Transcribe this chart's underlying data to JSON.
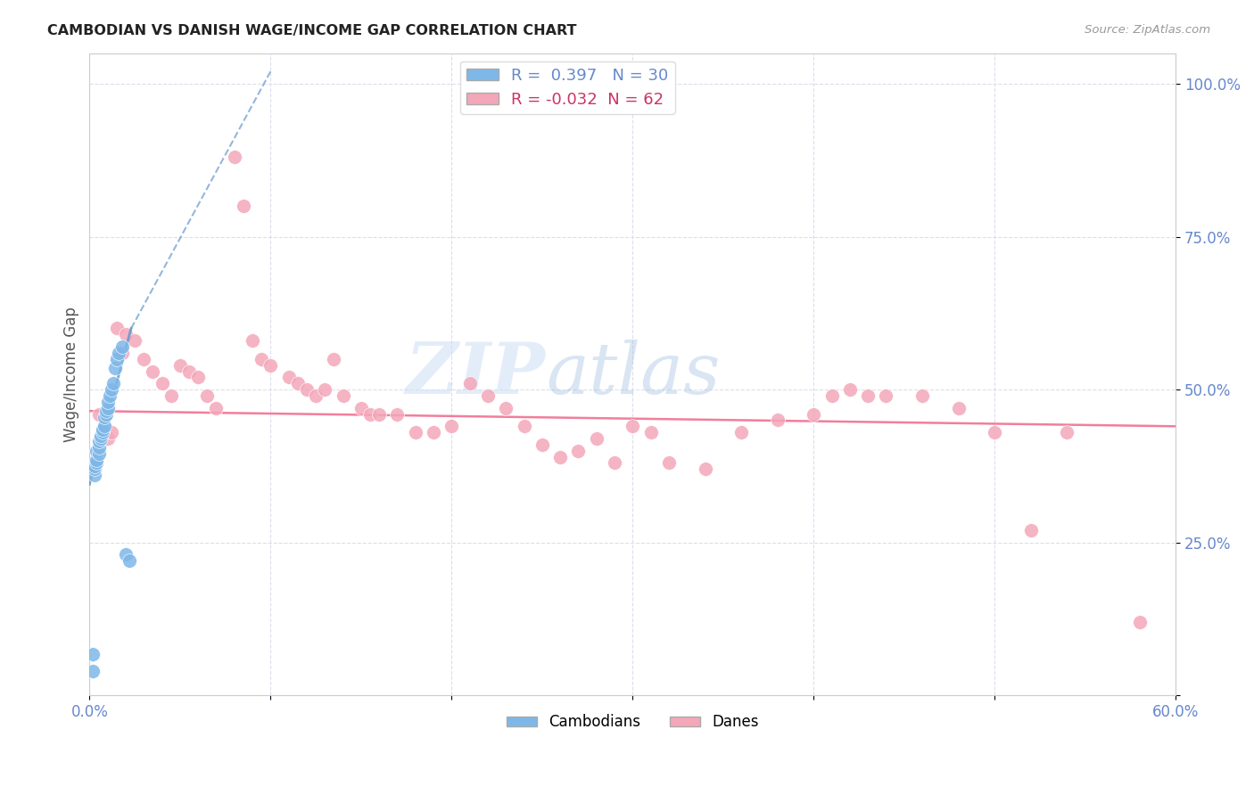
{
  "title": "CAMBODIAN VS DANISH WAGE/INCOME GAP CORRELATION CHART",
  "source": "Source: ZipAtlas.com",
  "ylabel": "Wage/Income Gap",
  "yticks": [
    0.0,
    0.25,
    0.5,
    0.75,
    1.0
  ],
  "ytick_labels": [
    "",
    "25.0%",
    "50.0%",
    "75.0%",
    "100.0%"
  ],
  "xmin": 0.0,
  "xmax": 0.6,
  "ymin": 0.0,
  "ymax": 1.05,
  "cambodian_color": "#7eb8e8",
  "danish_color": "#f4a7b9",
  "trend_cambodian_color": "#6699cc",
  "trend_danish_color": "#f07090",
  "R_cambodian": 0.397,
  "N_cambodian": 30,
  "R_danish": -0.032,
  "N_danish": 62,
  "legend_label_cambodian": "Cambodians",
  "legend_label_danish": "Danes",
  "watermark_zip": "ZIP",
  "watermark_atlas": "atlas",
  "title_color": "#222222",
  "axis_color": "#6688cc",
  "grid_color": "#ddddee",
  "cambodian_points_x": [
    0.002,
    0.002,
    0.003,
    0.003,
    0.003,
    0.004,
    0.004,
    0.004,
    0.005,
    0.005,
    0.005,
    0.006,
    0.006,
    0.007,
    0.007,
    0.008,
    0.008,
    0.009,
    0.009,
    0.01,
    0.01,
    0.011,
    0.012,
    0.013,
    0.014,
    0.015,
    0.016,
    0.018,
    0.02,
    0.022
  ],
  "cambodian_points_y": [
    0.04,
    0.068,
    0.36,
    0.37,
    0.375,
    0.38,
    0.385,
    0.4,
    0.395,
    0.405,
    0.415,
    0.42,
    0.425,
    0.43,
    0.435,
    0.44,
    0.455,
    0.46,
    0.465,
    0.47,
    0.48,
    0.49,
    0.5,
    0.51,
    0.535,
    0.55,
    0.56,
    0.57,
    0.23,
    0.22
  ],
  "danish_points_x": [
    0.005,
    0.008,
    0.01,
    0.012,
    0.015,
    0.018,
    0.02,
    0.025,
    0.03,
    0.035,
    0.04,
    0.045,
    0.05,
    0.055,
    0.06,
    0.065,
    0.07,
    0.08,
    0.085,
    0.09,
    0.095,
    0.1,
    0.11,
    0.115,
    0.12,
    0.125,
    0.13,
    0.135,
    0.14,
    0.15,
    0.155,
    0.16,
    0.17,
    0.18,
    0.19,
    0.2,
    0.21,
    0.22,
    0.23,
    0.24,
    0.25,
    0.26,
    0.27,
    0.28,
    0.29,
    0.3,
    0.31,
    0.32,
    0.34,
    0.36,
    0.38,
    0.4,
    0.41,
    0.42,
    0.43,
    0.44,
    0.46,
    0.48,
    0.5,
    0.52,
    0.54,
    0.58
  ],
  "danish_points_y": [
    0.46,
    0.44,
    0.42,
    0.43,
    0.6,
    0.56,
    0.59,
    0.58,
    0.55,
    0.53,
    0.51,
    0.49,
    0.54,
    0.53,
    0.52,
    0.49,
    0.47,
    0.88,
    0.8,
    0.58,
    0.55,
    0.54,
    0.52,
    0.51,
    0.5,
    0.49,
    0.5,
    0.55,
    0.49,
    0.47,
    0.46,
    0.46,
    0.46,
    0.43,
    0.43,
    0.44,
    0.51,
    0.49,
    0.47,
    0.44,
    0.41,
    0.39,
    0.4,
    0.42,
    0.38,
    0.44,
    0.43,
    0.38,
    0.37,
    0.43,
    0.45,
    0.46,
    0.49,
    0.5,
    0.49,
    0.49,
    0.49,
    0.47,
    0.43,
    0.27,
    0.43,
    0.12
  ],
  "trend_camb_x0": 0.0,
  "trend_camb_y0": 0.345,
  "trend_camb_x1": 0.023,
  "trend_camb_y1": 0.6,
  "trend_camb_xdash0": 0.023,
  "trend_camb_ydash0": 0.6,
  "trend_camb_xdash1": 0.1,
  "trend_camb_ydash1": 1.02,
  "trend_danish_x0": 0.0,
  "trend_danish_y0": 0.465,
  "trend_danish_x1": 0.6,
  "trend_danish_y1": 0.44
}
